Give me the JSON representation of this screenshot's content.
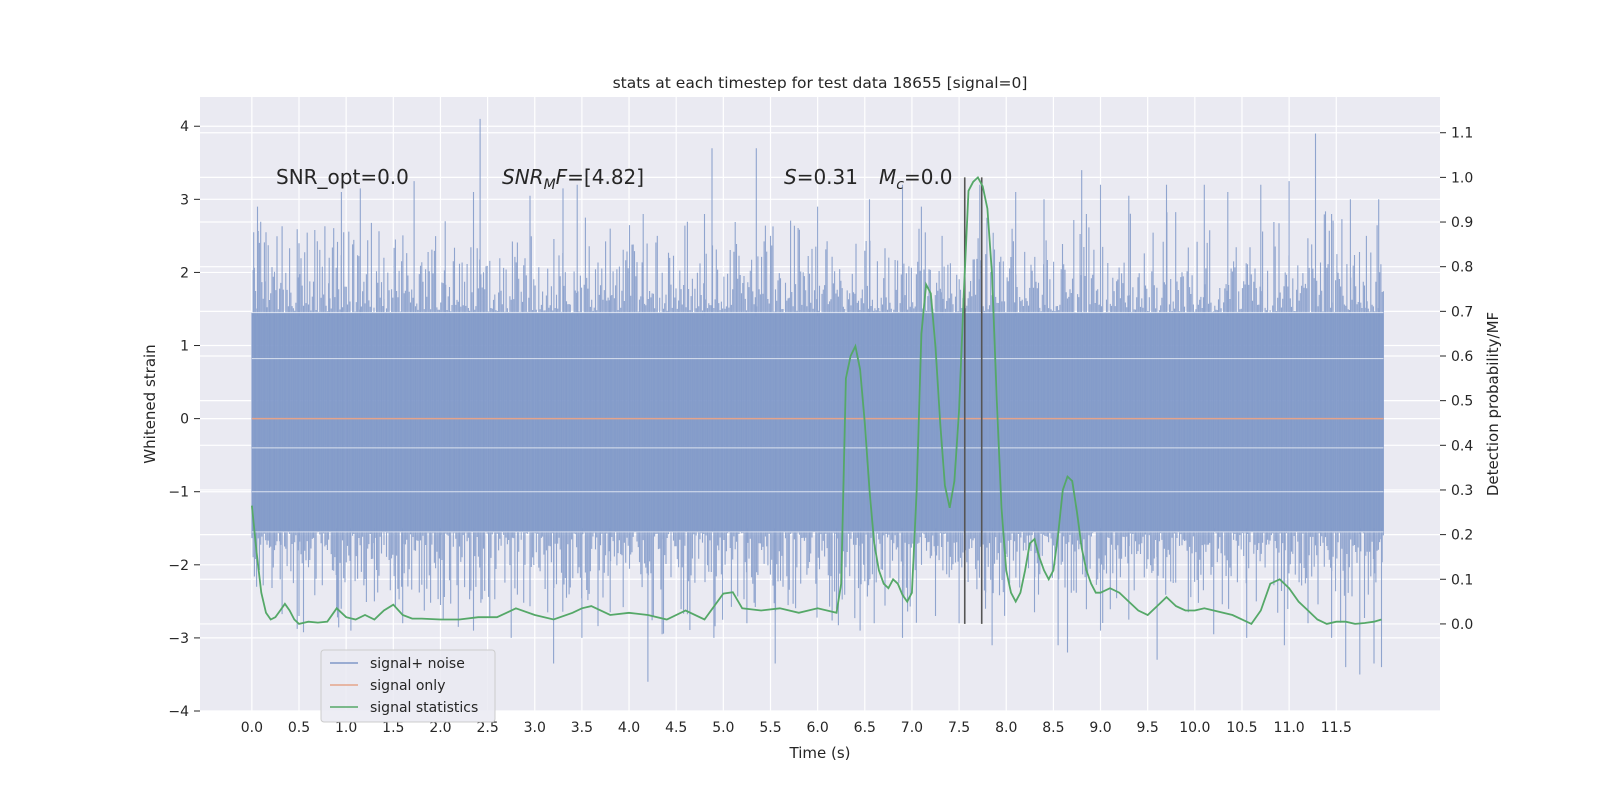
{
  "chart_data": {
    "type": "line",
    "title": "stats at each timestep for test data 18655 [signal=0]",
    "xlabel": "Time (s)",
    "ylabel": "Whitened strain",
    "ylabel_right": "Detection probability/MF",
    "xlim": [
      -0.55,
      12.6
    ],
    "ylim": [
      -4.0,
      4.4
    ],
    "ylim_right": [
      -0.195,
      1.18
    ],
    "x_ticks": [
      "0.0",
      "0.5",
      "1.0",
      "1.5",
      "2.0",
      "2.5",
      "3.0",
      "3.5",
      "4.0",
      "4.5",
      "5.0",
      "5.5",
      "6.0",
      "6.5",
      "7.0",
      "7.5",
      "8.0",
      "8.5",
      "9.0",
      "9.5",
      "10.0",
      "10.5",
      "11.0",
      "11.5"
    ],
    "y_ticks": [
      "4",
      "3",
      "2",
      "1",
      "0",
      "−1",
      "−2",
      "−3",
      "−4"
    ],
    "y_ticks_right": [
      "1.1",
      "1.0",
      "0.9",
      "0.8",
      "0.7",
      "0.6",
      "0.5",
      "0.4",
      "0.3",
      "0.2",
      "0.1",
      "0.0"
    ],
    "grid": true,
    "annotations": {
      "snr_opt": "SNR_opt=0.0",
      "snr_mf_label": "SNR",
      "snr_mf_sub": "M",
      "snr_mf_f": "F",
      "snr_mf_value": "=[4.82]",
      "s_label": "S",
      "s_value": "=0.31",
      "mc_label": "M",
      "mc_sub": "c",
      "mc_value": "=0.0"
    },
    "vlines_x": [
      7.56,
      7.74
    ],
    "legend": {
      "position": "lower-left",
      "entries": [
        {
          "name": "signal+ noise",
          "color": "#7f98c8"
        },
        {
          "name": "signal only",
          "color": "#e5a48a"
        },
        {
          "name": "signal statistics",
          "color": "#55a868"
        }
      ]
    },
    "series": [
      {
        "name": "signal+ noise",
        "color": "#7f98c8",
        "x_range": [
          0.0,
          12.0
        ],
        "band": [
          -1.55,
          1.45
        ],
        "peaks_high": [
          [
            0.02,
            2.55
          ],
          [
            0.06,
            2.9
          ],
          [
            0.15,
            2.55
          ],
          [
            0.5,
            2.4
          ],
          [
            0.82,
            2.2
          ],
          [
            0.95,
            3.1
          ],
          [
            1.15,
            3.15
          ],
          [
            1.4,
            2.2
          ],
          [
            1.72,
            3.25
          ],
          [
            2.05,
            2.7
          ],
          [
            2.35,
            3.1
          ],
          [
            2.42,
            4.1
          ],
          [
            2.95,
            3.05
          ],
          [
            3.3,
            3.15
          ],
          [
            3.45,
            3.2
          ],
          [
            3.8,
            2.6
          ],
          [
            4.15,
            2.8
          ],
          [
            4.3,
            2.5
          ],
          [
            4.8,
            2.8
          ],
          [
            4.88,
            3.7
          ],
          [
            5.35,
            3.7
          ],
          [
            5.5,
            2.5
          ],
          [
            6.0,
            2.9
          ],
          [
            6.55,
            3.0
          ],
          [
            6.9,
            3.2
          ],
          [
            7.1,
            2.9
          ],
          [
            7.32,
            2.5
          ],
          [
            7.72,
            3.2
          ],
          [
            8.1,
            3.1
          ],
          [
            8.4,
            3.0
          ],
          [
            8.8,
            3.4
          ],
          [
            9.0,
            3.2
          ],
          [
            9.3,
            3.05
          ],
          [
            9.7,
            3.2
          ],
          [
            10.1,
            3.2
          ],
          [
            10.35,
            3.1
          ],
          [
            10.7,
            3.2
          ],
          [
            11.0,
            3.25
          ],
          [
            11.28,
            3.9
          ],
          [
            11.45,
            2.8
          ],
          [
            11.65,
            3.0
          ],
          [
            11.82,
            2.5
          ],
          [
            11.95,
            3.0
          ]
        ],
        "peaks_low": [
          [
            0.05,
            -2.3
          ],
          [
            0.3,
            -2.2
          ],
          [
            0.5,
            -2.7
          ],
          [
            0.9,
            -2.6
          ],
          [
            1.05,
            -2.9
          ],
          [
            1.3,
            -2.5
          ],
          [
            1.6,
            -2.8
          ],
          [
            2.0,
            -2.55
          ],
          [
            2.35,
            -2.9
          ],
          [
            2.75,
            -3.0
          ],
          [
            3.2,
            -3.35
          ],
          [
            3.5,
            -3.0
          ],
          [
            3.8,
            -2.65
          ],
          [
            4.2,
            -3.6
          ],
          [
            4.35,
            -2.95
          ],
          [
            4.9,
            -3.0
          ],
          [
            5.25,
            -2.8
          ],
          [
            5.55,
            -3.35
          ],
          [
            6.2,
            -2.6
          ],
          [
            6.45,
            -2.9
          ],
          [
            6.6,
            -2.8
          ],
          [
            6.9,
            -3.0
          ],
          [
            7.25,
            -2.7
          ],
          [
            7.5,
            -2.8
          ],
          [
            7.78,
            -2.6
          ],
          [
            7.85,
            -3.1
          ],
          [
            8.3,
            -2.65
          ],
          [
            8.55,
            -3.1
          ],
          [
            8.65,
            -3.2
          ],
          [
            9.0,
            -2.9
          ],
          [
            9.3,
            -2.75
          ],
          [
            9.6,
            -3.3
          ],
          [
            10.2,
            -2.95
          ],
          [
            10.55,
            -3.0
          ],
          [
            10.95,
            -3.1
          ],
          [
            11.2,
            -2.8
          ],
          [
            11.45,
            -3.0
          ],
          [
            11.6,
            -3.4
          ],
          [
            11.75,
            -3.5
          ],
          [
            11.9,
            -3.35
          ],
          [
            11.98,
            -3.4
          ]
        ]
      },
      {
        "name": "signal only",
        "color": "#e5a48a",
        "x": [
          0.0,
          12.0
        ],
        "y": [
          0.0,
          0.0
        ]
      },
      {
        "name": "signal statistics",
        "color": "#55a868",
        "axis": "right",
        "x": [
          0.0,
          0.05,
          0.1,
          0.15,
          0.2,
          0.25,
          0.3,
          0.35,
          0.4,
          0.45,
          0.5,
          0.6,
          0.7,
          0.8,
          0.9,
          1.0,
          1.1,
          1.2,
          1.3,
          1.4,
          1.5,
          1.6,
          1.7,
          1.8,
          2.0,
          2.2,
          2.4,
          2.6,
          2.7,
          2.8,
          3.0,
          3.2,
          3.4,
          3.5,
          3.6,
          3.8,
          4.0,
          4.2,
          4.4,
          4.6,
          4.8,
          5.0,
          5.1,
          5.2,
          5.4,
          5.6,
          5.8,
          6.0,
          6.2,
          6.25,
          6.3,
          6.35,
          6.4,
          6.45,
          6.5,
          6.55,
          6.6,
          6.65,
          6.7,
          6.75,
          6.8,
          6.85,
          6.9,
          6.95,
          7.0,
          7.05,
          7.1,
          7.15,
          7.2,
          7.25,
          7.3,
          7.35,
          7.4,
          7.45,
          7.5,
          7.55,
          7.6,
          7.65,
          7.7,
          7.75,
          7.8,
          7.85,
          7.9,
          7.95,
          8.0,
          8.05,
          8.1,
          8.15,
          8.2,
          8.25,
          8.3,
          8.35,
          8.4,
          8.45,
          8.5,
          8.55,
          8.6,
          8.65,
          8.7,
          8.75,
          8.8,
          8.85,
          8.9,
          8.95,
          9.0,
          9.1,
          9.2,
          9.3,
          9.4,
          9.5,
          9.6,
          9.7,
          9.8,
          9.9,
          10.0,
          10.1,
          10.2,
          10.4,
          10.6,
          10.7,
          10.8,
          10.9,
          11.0,
          11.1,
          11.2,
          11.3,
          11.4,
          11.5,
          11.6,
          11.7,
          11.8,
          11.9,
          11.98
        ],
        "y": [
          0.265,
          0.16,
          0.07,
          0.025,
          0.01,
          0.015,
          0.03,
          0.045,
          0.03,
          0.01,
          0.0,
          0.005,
          0.003,
          0.005,
          0.035,
          0.015,
          0.01,
          0.02,
          0.01,
          0.03,
          0.043,
          0.02,
          0.012,
          0.012,
          0.01,
          0.01,
          0.015,
          0.015,
          0.025,
          0.035,
          0.02,
          0.01,
          0.025,
          0.035,
          0.04,
          0.02,
          0.025,
          0.02,
          0.01,
          0.03,
          0.01,
          0.068,
          0.071,
          0.035,
          0.03,
          0.035,
          0.025,
          0.035,
          0.025,
          0.09,
          0.55,
          0.6,
          0.622,
          0.57,
          0.45,
          0.3,
          0.18,
          0.12,
          0.09,
          0.08,
          0.1,
          0.09,
          0.065,
          0.05,
          0.07,
          0.3,
          0.65,
          0.76,
          0.74,
          0.62,
          0.45,
          0.31,
          0.26,
          0.32,
          0.48,
          0.74,
          0.97,
          0.99,
          1.0,
          0.98,
          0.93,
          0.78,
          0.5,
          0.26,
          0.12,
          0.07,
          0.05,
          0.07,
          0.12,
          0.18,
          0.19,
          0.15,
          0.12,
          0.1,
          0.12,
          0.2,
          0.3,
          0.33,
          0.32,
          0.25,
          0.17,
          0.12,
          0.09,
          0.07,
          0.07,
          0.08,
          0.07,
          0.05,
          0.03,
          0.02,
          0.04,
          0.06,
          0.04,
          0.03,
          0.03,
          0.035,
          0.03,
          0.02,
          0.0,
          0.03,
          0.09,
          0.1,
          0.08,
          0.05,
          0.03,
          0.01,
          0.0,
          0.005,
          0.005,
          0.0,
          0.002,
          0.005,
          0.01
        ]
      }
    ]
  }
}
